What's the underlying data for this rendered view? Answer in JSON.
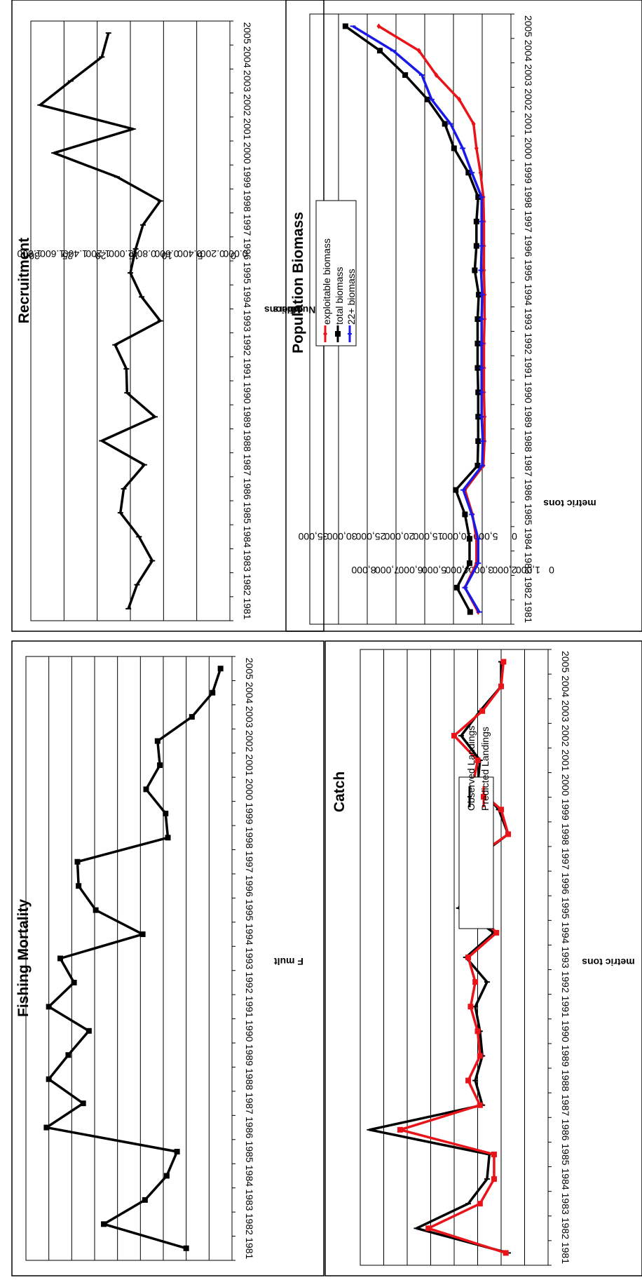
{
  "years": [
    "1981",
    "1982",
    "1983",
    "1984",
    "1985",
    "1986",
    "1987",
    "1988",
    "1989",
    "1990",
    "1991",
    "1992",
    "1993",
    "1994",
    "1995",
    "1996",
    "1997",
    "1998",
    "1999",
    "2000",
    "2001",
    "2002",
    "2003",
    "2004",
    "2005"
  ],
  "chart_data": [
    {
      "id": "fishing-mortality",
      "type": "line",
      "title": "Fishing Mortality",
      "xlabel": "",
      "ylabel": "F mult",
      "ylim": [
        0,
        1.8
      ],
      "yticks": [
        "0.000",
        "0.200",
        "0.400",
        "0.600",
        "0.800",
        "1.000",
        "1.200",
        "1.400",
        "1.600",
        "1.800"
      ],
      "grid": true,
      "legend": null,
      "series": [
        {
          "color": "#000000",
          "marker": "square",
          "values": [
            0.4,
            1.12,
            0.76,
            0.57,
            0.48,
            1.62,
            1.3,
            1.6,
            1.43,
            1.25,
            1.6,
            1.38,
            1.5,
            0.78,
            1.19,
            1.34,
            1.35,
            0.56,
            0.58,
            0.75,
            0.63,
            0.65,
            0.35,
            0.17,
            0.1
          ]
        }
      ]
    },
    {
      "id": "recruitment",
      "type": "line",
      "title": "Recruitment",
      "xlabel": "",
      "ylabel": "Numbers",
      "ylabel2": "Millions",
      "ylim": [
        0,
        30
      ],
      "yticks": [
        "0",
        "5",
        "10",
        "15",
        "20",
        "25",
        "30"
      ],
      "grid": true,
      "legend": null,
      "series": [
        {
          "color": "#000000",
          "marker": "dash",
          "values": [
            15.3,
            14.0,
            11.7,
            13.7,
            16.5,
            16.0,
            12.9,
            19.3,
            11.3,
            15.5,
            15.6,
            17.3,
            10.5,
            13.3,
            15.0,
            14.2,
            13.1,
            10.5,
            17.0,
            26.5,
            14.6,
            28.6,
            24.0,
            19.3,
            18.3
          ]
        }
      ]
    },
    {
      "id": "catch",
      "type": "line",
      "title": "Catch",
      "xlabel": "",
      "ylabel": "metric tons",
      "ylim": [
        0,
        8000
      ],
      "yticks": [
        "0",
        "1,000",
        "2,000",
        "3,000",
        "4,000",
        "5,000",
        "6,000",
        "7,000",
        "8,000"
      ],
      "grid": true,
      "legend": "center",
      "series": [
        {
          "name": "Observed Landings",
          "color": "#000000",
          "marker": "dash",
          "values": [
            1700,
            5600,
            3400,
            2600,
            2500,
            7600,
            2800,
            3100,
            2800,
            2900,
            3100,
            2600,
            3500,
            2300,
            3800,
            3300,
            3100,
            1700,
            2100,
            3000,
            2900,
            3700,
            2900,
            2000,
            2000
          ]
        },
        {
          "name": "Predicted Landings",
          "color": "#e8141a",
          "marker": "square",
          "values": [
            1800,
            5100,
            2900,
            2300,
            2300,
            6300,
            2900,
            3400,
            2900,
            3000,
            3300,
            3100,
            3400,
            2200,
            3200,
            3200,
            3200,
            1700,
            2000,
            3200,
            3000,
            4000,
            2800,
            2000,
            1900
          ]
        }
      ]
    },
    {
      "id": "population-biomass",
      "type": "line",
      "title": "Population Biomass",
      "xlabel": "",
      "ylabel": "metric tons",
      "ylim": [
        0,
        35000
      ],
      "yticks": [
        "0",
        "5,000",
        "10,000",
        "15,000",
        "20,000",
        "25,000",
        "30,000",
        "35,000"
      ],
      "grid": true,
      "legend": "top-left",
      "series": [
        {
          "name": "exploitable biomass",
          "color": "#e8141a",
          "marker": "diamond",
          "values": [
            5700,
            8000,
            6000,
            6000,
            6700,
            8000,
            4800,
            4600,
            4600,
            4700,
            4700,
            4700,
            4600,
            4600,
            4700,
            4700,
            4700,
            4800,
            5300,
            6000,
            6500,
            9000,
            13000,
            16000,
            23000
          ]
        },
        {
          "name": "total biomass",
          "color": "#000000",
          "marker": "square",
          "values": [
            7100,
            9400,
            7200,
            7200,
            8000,
            9600,
            5800,
            5700,
            5700,
            5700,
            5800,
            5800,
            5800,
            5600,
            6300,
            6000,
            6000,
            5700,
            7400,
            9900,
            11500,
            14500,
            18400,
            22800,
            28800
          ]
        },
        {
          "name": "22+ biomass",
          "color": "#1a1ae8",
          "marker": "dash",
          "values": [
            5500,
            8000,
            5700,
            5700,
            6800,
            8300,
            5000,
            4900,
            5100,
            5100,
            5100,
            5100,
            5100,
            5000,
            5200,
            5100,
            5100,
            5100,
            6800,
            8400,
            10500,
            13800,
            15500,
            20500,
            27500
          ]
        }
      ]
    }
  ]
}
